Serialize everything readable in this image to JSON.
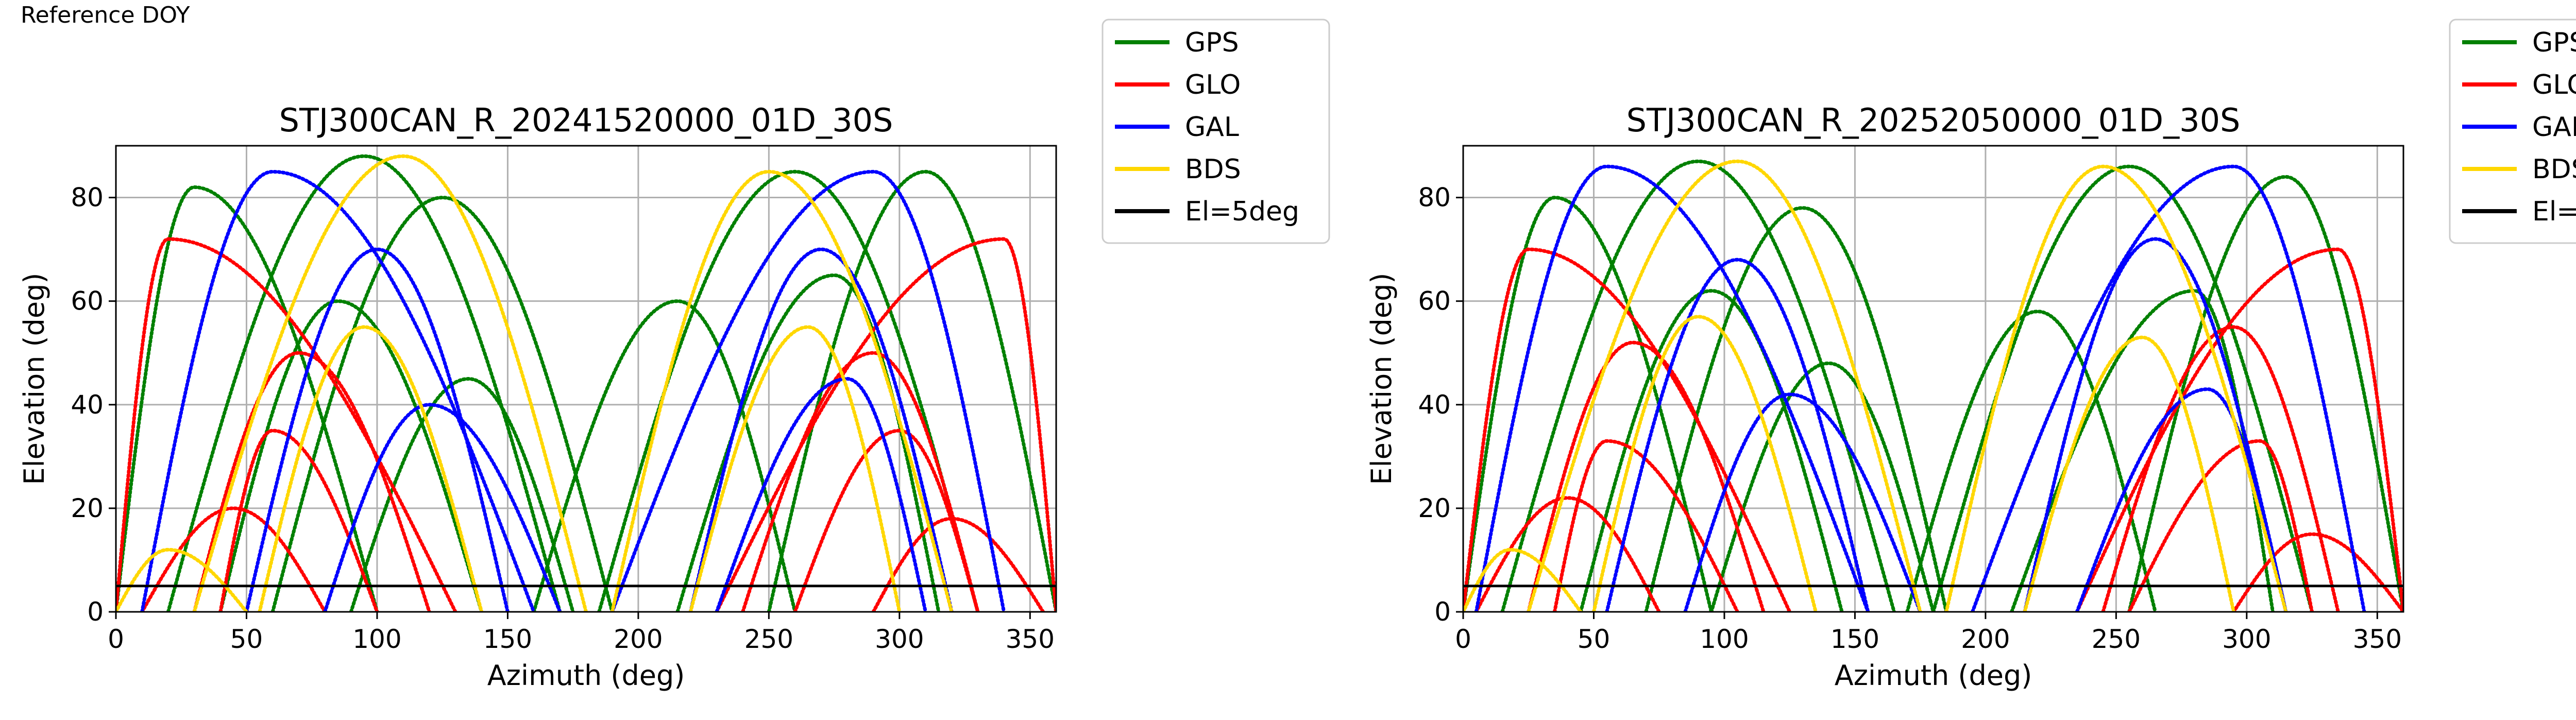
{
  "header": {
    "reference_label": "Reference DOY"
  },
  "legend": [
    {
      "label": "GPS",
      "color": "#008000"
    },
    {
      "label": "GLO",
      "color": "#ff0000"
    },
    {
      "label": "GAL",
      "color": "#0000ff"
    },
    {
      "label": "BDS",
      "color": "#ffd700"
    },
    {
      "label": "El=5deg",
      "color": "#000000"
    }
  ],
  "chart_data": [
    {
      "type": "scatter",
      "title": "STJ300CAN_R_20241520000_01D_30S",
      "xlabel": "Azimuth (deg)",
      "ylabel": "Elevation (deg)",
      "xlim": [
        0,
        360
      ],
      "ylim": [
        0,
        90
      ],
      "xticks": [
        "0",
        "50",
        "100",
        "150",
        "200",
        "250",
        "300",
        "350"
      ],
      "yticks": [
        "0",
        "20",
        "40",
        "60",
        "80"
      ],
      "grid": true,
      "legend_position": "outside-right",
      "reference_line": {
        "label": "El=5deg",
        "y": 5
      },
      "series": [
        {
          "name": "GPS",
          "color": "#008000",
          "arcs": [
            {
              "start_az": 20,
              "end_az": 170,
              "peak_az": 95,
              "peak_el": 88
            },
            {
              "start_az": 40,
              "end_az": 140,
              "peak_az": 85,
              "peak_el": 60
            },
            {
              "start_az": 60,
              "end_az": 190,
              "peak_az": 125,
              "peak_el": 80
            },
            {
              "start_az": 90,
              "end_az": 175,
              "peak_az": 135,
              "peak_el": 45
            },
            {
              "start_az": 185,
              "end_az": 330,
              "peak_az": 260,
              "peak_el": 85
            },
            {
              "start_az": 215,
              "end_az": 315,
              "peak_az": 275,
              "peak_el": 65
            },
            {
              "start_az": 250,
              "end_az": 360,
              "peak_az": 310,
              "peak_el": 85
            },
            {
              "start_az": 0,
              "end_az": 100,
              "peak_az": 30,
              "peak_el": 82
            },
            {
              "start_az": 160,
              "end_az": 260,
              "peak_az": 215,
              "peak_el": 60
            }
          ]
        },
        {
          "name": "GLO",
          "color": "#ff0000",
          "arcs": [
            {
              "start_az": 0,
              "end_az": 130,
              "peak_az": 20,
              "peak_el": 72
            },
            {
              "start_az": 30,
              "end_az": 120,
              "peak_az": 70,
              "peak_el": 50
            },
            {
              "start_az": 40,
              "end_az": 100,
              "peak_az": 60,
              "peak_el": 35
            },
            {
              "start_az": 10,
              "end_az": 80,
              "peak_az": 45,
              "peak_el": 20
            },
            {
              "start_az": 230,
              "end_az": 360,
              "peak_az": 340,
              "peak_el": 72
            },
            {
              "start_az": 240,
              "end_az": 330,
              "peak_az": 290,
              "peak_el": 50
            },
            {
              "start_az": 260,
              "end_az": 330,
              "peak_az": 300,
              "peak_el": 35
            },
            {
              "start_az": 290,
              "end_az": 355,
              "peak_az": 320,
              "peak_el": 18
            }
          ]
        },
        {
          "name": "GAL",
          "color": "#0000ff",
          "arcs": [
            {
              "start_az": 10,
              "end_az": 160,
              "peak_az": 60,
              "peak_el": 85
            },
            {
              "start_az": 50,
              "end_az": 150,
              "peak_az": 100,
              "peak_el": 70
            },
            {
              "start_az": 80,
              "end_az": 170,
              "peak_az": 120,
              "peak_el": 40
            },
            {
              "start_az": 190,
              "end_az": 340,
              "peak_az": 290,
              "peak_el": 85
            },
            {
              "start_az": 220,
              "end_az": 320,
              "peak_az": 270,
              "peak_el": 70
            },
            {
              "start_az": 230,
              "end_az": 310,
              "peak_az": 280,
              "peak_el": 45
            }
          ]
        },
        {
          "name": "BDS",
          "color": "#ffd700",
          "arcs": [
            {
              "start_az": 30,
              "end_az": 180,
              "peak_az": 110,
              "peak_el": 88
            },
            {
              "start_az": 55,
              "end_az": 140,
              "peak_az": 95,
              "peak_el": 55
            },
            {
              "start_az": 190,
              "end_az": 320,
              "peak_az": 250,
              "peak_el": 85
            },
            {
              "start_az": 220,
              "end_az": 300,
              "peak_az": 265,
              "peak_el": 55
            },
            {
              "start_az": 0,
              "end_az": 50,
              "peak_az": 20,
              "peak_el": 12
            }
          ]
        }
      ]
    },
    {
      "type": "scatter",
      "title": "STJ300CAN_R_20252050000_01D_30S",
      "xlabel": "Azimuth (deg)",
      "ylabel": "Elevation (deg)",
      "xlim": [
        0,
        360
      ],
      "ylim": [
        0,
        90
      ],
      "xticks": [
        "0",
        "50",
        "100",
        "150",
        "200",
        "250",
        "300",
        "350"
      ],
      "yticks": [
        "0",
        "20",
        "40",
        "60",
        "80"
      ],
      "grid": true,
      "legend_position": "outside-right",
      "reference_line": {
        "label": "El=5deg",
        "y": 5
      },
      "series": [
        {
          "name": "GPS",
          "color": "#008000",
          "arcs": [
            {
              "start_az": 15,
              "end_az": 165,
              "peak_az": 90,
              "peak_el": 87
            },
            {
              "start_az": 45,
              "end_az": 145,
              "peak_az": 95,
              "peak_el": 62
            },
            {
              "start_az": 70,
              "end_az": 185,
              "peak_az": 130,
              "peak_el": 78
            },
            {
              "start_az": 95,
              "end_az": 180,
              "peak_az": 140,
              "peak_el": 48
            },
            {
              "start_az": 180,
              "end_az": 325,
              "peak_az": 255,
              "peak_el": 86
            },
            {
              "start_az": 210,
              "end_az": 310,
              "peak_az": 280,
              "peak_el": 62
            },
            {
              "start_az": 255,
              "end_az": 360,
              "peak_az": 315,
              "peak_el": 84
            },
            {
              "start_az": 0,
              "end_az": 95,
              "peak_az": 35,
              "peak_el": 80
            },
            {
              "start_az": 170,
              "end_az": 265,
              "peak_az": 220,
              "peak_el": 58
            }
          ]
        },
        {
          "name": "GLO",
          "color": "#ff0000",
          "arcs": [
            {
              "start_az": 0,
              "end_az": 125,
              "peak_az": 25,
              "peak_el": 70
            },
            {
              "start_az": 25,
              "end_az": 115,
              "peak_az": 65,
              "peak_el": 52
            },
            {
              "start_az": 35,
              "end_az": 105,
              "peak_az": 55,
              "peak_el": 33
            },
            {
              "start_az": 5,
              "end_az": 75,
              "peak_az": 40,
              "peak_el": 22
            },
            {
              "start_az": 235,
              "end_az": 360,
              "peak_az": 335,
              "peak_el": 70
            },
            {
              "start_az": 245,
              "end_az": 335,
              "peak_az": 295,
              "peak_el": 55
            },
            {
              "start_az": 255,
              "end_az": 325,
              "peak_az": 305,
              "peak_el": 33
            },
            {
              "start_az": 295,
              "end_az": 360,
              "peak_az": 325,
              "peak_el": 15
            }
          ]
        },
        {
          "name": "GAL",
          "color": "#0000ff",
          "arcs": [
            {
              "start_az": 5,
              "end_az": 155,
              "peak_az": 55,
              "peak_el": 86
            },
            {
              "start_az": 55,
              "end_az": 155,
              "peak_az": 105,
              "peak_el": 68
            },
            {
              "start_az": 85,
              "end_az": 175,
              "peak_az": 125,
              "peak_el": 42
            },
            {
              "start_az": 195,
              "end_az": 345,
              "peak_az": 295,
              "peak_el": 86
            },
            {
              "start_az": 215,
              "end_az": 315,
              "peak_az": 265,
              "peak_el": 72
            },
            {
              "start_az": 235,
              "end_az": 315,
              "peak_az": 285,
              "peak_el": 43
            }
          ]
        },
        {
          "name": "BDS",
          "color": "#ffd700",
          "arcs": [
            {
              "start_az": 25,
              "end_az": 175,
              "peak_az": 105,
              "peak_el": 87
            },
            {
              "start_az": 50,
              "end_az": 135,
              "peak_az": 90,
              "peak_el": 57
            },
            {
              "start_az": 185,
              "end_az": 315,
              "peak_az": 245,
              "peak_el": 86
            },
            {
              "start_az": 215,
              "end_az": 295,
              "peak_az": 260,
              "peak_el": 53
            },
            {
              "start_az": 0,
              "end_az": 45,
              "peak_az": 18,
              "peak_el": 12
            }
          ]
        }
      ]
    }
  ]
}
